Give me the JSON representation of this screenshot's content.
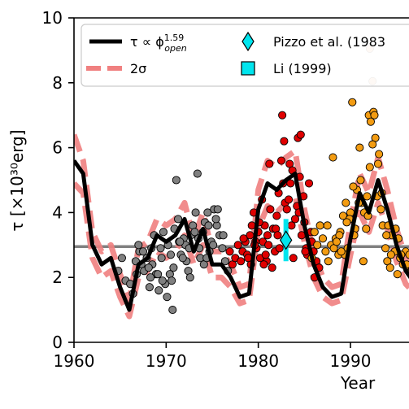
{
  "chart_data": {
    "type": "scatter",
    "xlabel": "Year",
    "ylabel": "τ [×10³⁰erg]",
    "xlim": [
      1960,
      1997
    ],
    "ylim": [
      0,
      10
    ],
    "x_ticks": [
      1960,
      1970,
      1980,
      1990
    ],
    "y_ticks": [
      0,
      2,
      4,
      6,
      8,
      10
    ],
    "reference_line": {
      "y": 2.95,
      "color": "#808080"
    },
    "legend": {
      "placement": "top",
      "entries": [
        {
          "label": "τ ∝ ϕ",
          "sup": "1.59",
          "sub": "open",
          "marker": "line",
          "color": "#000000"
        },
        {
          "label": "2σ",
          "marker": "dashed-line",
          "color": "#f08080"
        },
        {
          "label": "Pizzo et al. (1983",
          "marker": "diamond",
          "color": "#00e5ee"
        },
        {
          "label": "Li (1999)",
          "marker": "square",
          "color": "#00e5ee"
        }
      ]
    },
    "model_line": {
      "name": "τ ∝ ϕ^1.59_open",
      "color": "#000000",
      "x": [
        1960,
        1961,
        1962,
        1963,
        1964,
        1965,
        1966,
        1967,
        1968,
        1969,
        1970,
        1971,
        1972,
        1973,
        1974,
        1975,
        1976,
        1977,
        1978,
        1979,
        1980,
        1981,
        1982,
        1983,
        1984,
        1985,
        1986,
        1987,
        1988,
        1989,
        1990,
        1991,
        1992,
        1993,
        1994,
        1995,
        1996,
        1997
      ],
      "y": [
        5.6,
        5.2,
        3.0,
        2.4,
        2.6,
        1.7,
        1.0,
        2.4,
        2.6,
        3.3,
        3.1,
        3.3,
        3.8,
        2.8,
        3.5,
        2.4,
        2.4,
        2.0,
        1.4,
        1.5,
        4.1,
        4.9,
        4.7,
        5.0,
        5.2,
        3.6,
        2.4,
        1.7,
        1.4,
        1.5,
        3.2,
        4.6,
        4.0,
        5.0,
        4.1,
        3.0,
        2.2,
        1.8
      ]
    },
    "sigma_band": {
      "name": "2σ",
      "color": "#f08080",
      "upper": [
        6.4,
        5.6,
        3.4,
        2.8,
        3.0,
        2.1,
        1.3,
        2.9,
        3.1,
        3.8,
        3.6,
        3.8,
        4.3,
        3.2,
        4.0,
        2.8,
        2.8,
        2.4,
        1.7,
        1.8,
        4.7,
        5.6,
        5.4,
        5.7,
        5.9,
        4.1,
        2.8,
        2.0,
        1.7,
        1.8,
        3.7,
        5.2,
        4.6,
        5.7,
        4.7,
        3.5,
        2.6,
        2.1
      ],
      "lower": [
        4.9,
        4.6,
        2.6,
        2.0,
        2.2,
        1.4,
        0.8,
        2.0,
        2.2,
        2.8,
        2.6,
        2.8,
        3.3,
        2.4,
        3.0,
        2.0,
        2.0,
        1.7,
        1.2,
        1.3,
        3.5,
        4.2,
        4.0,
        4.3,
        4.5,
        3.1,
        2.0,
        1.4,
        1.2,
        1.3,
        2.7,
        4.0,
        3.4,
        4.3,
        3.5,
        2.5,
        1.8,
        1.5
      ]
    },
    "pizzo": {
      "x": 1983.0,
      "y": 3.15,
      "err_low": 2.5,
      "err_high": 3.8,
      "color": "#00e5ee"
    },
    "series": [
      {
        "name": "cycle 20",
        "color": "#808080",
        "x": [
          1964.8,
          1965.2,
          1965.6,
          1966.1,
          1966.4,
          1966.8,
          1967.1,
          1967.3,
          1967.6,
          1967.9,
          1968.2,
          1968.5,
          1968.7,
          1968.9,
          1969.2,
          1969.4,
          1969.7,
          1969.9,
          1970.2,
          1970.5,
          1970.7,
          1970.9,
          1971.1,
          1971.4,
          1971.6,
          1971.9,
          1972.2,
          1972.4,
          1972.7,
          1972.9,
          1973.2,
          1973.4,
          1973.7,
          1974.0,
          1974.2,
          1974.5,
          1974.7,
          1974.9,
          1975.2,
          1975.5,
          1975.8,
          1976.1,
          1976.4,
          1976.7,
          1966.7,
          1967.5,
          1968.1,
          1968.4,
          1969.1,
          1969.6,
          1970.1,
          1970.4,
          1970.8,
          1971.3,
          1971.8,
          1972.1,
          1972.6,
          1973.1,
          1973.6,
          1974.1,
          1974.6,
          1975.1,
          1975.6,
          1976.2,
          1967.0,
          1968.3,
          1969.5,
          1970.6,
          1971.5,
          1972.5,
          1973.5,
          1974.4,
          1975.4
        ],
        "y": [
          2.2,
          2.6,
          1.9,
          1.8,
          1.5,
          2.1,
          2.8,
          2.4,
          2.2,
          2.6,
          1.7,
          2.4,
          3.3,
          2.1,
          1.6,
          2.9,
          3.4,
          1.8,
          3.0,
          2.7,
          1.0,
          3.5,
          5.0,
          3.1,
          2.7,
          3.2,
          2.5,
          2.2,
          3.3,
          3.6,
          4.0,
          5.2,
          2.6,
          3.4,
          3.7,
          4.0,
          2.8,
          3.1,
          4.1,
          3.6,
          3.3,
          2.9,
          2.5,
          2.2,
          2.5,
          2.8,
          2.3,
          2.9,
          2.1,
          1.9,
          1.4,
          2.1,
          2.3,
          3.8,
          2.6,
          3.0,
          2.0,
          3.4,
          2.9,
          2.4,
          3.6,
          3.0,
          4.1,
          3.3,
          3.0,
          2.0,
          2.6,
          1.9,
          3.1,
          2.9,
          3.2,
          2.6,
          3.8
        ]
      },
      {
        "name": "cycle 21",
        "color": "#e00000",
        "x": [
          1976.9,
          1977.2,
          1977.5,
          1977.8,
          1978.1,
          1978.3,
          1978.6,
          1978.8,
          1979.1,
          1979.3,
          1979.5,
          1979.8,
          1980.0,
          1980.2,
          1980.5,
          1980.7,
          1980.9,
          1981.1,
          1981.3,
          1981.6,
          1981.8,
          1982.0,
          1982.2,
          1982.5,
          1982.7,
          1982.9,
          1983.1,
          1983.4,
          1983.6,
          1983.8,
          1984.0,
          1984.3,
          1984.5,
          1984.7,
          1985.0,
          1985.2,
          1985.5,
          1985.7,
          1986.0,
          1986.3,
          1986.6,
          1979.2,
          1979.7,
          1980.1,
          1980.4,
          1980.8,
          1981.0,
          1981.5,
          1981.9,
          1982.3,
          1982.6,
          1983.0,
          1983.3,
          1983.7,
          1984.2,
          1984.6,
          1984.9,
          1985.3,
          1985.8,
          1978.4,
          1978.9,
          1979.6,
          1980.6,
          1981.2,
          1982.1,
          1982.8,
          1983.5,
          1984.4,
          1985.1,
          1986.1
        ],
        "y": [
          2.8,
          2.4,
          2.6,
          3.0,
          2.5,
          2.8,
          3.1,
          2.7,
          3.3,
          3.6,
          4.0,
          2.9,
          3.4,
          2.6,
          3.1,
          3.6,
          2.5,
          3.0,
          4.1,
          3.5,
          2.8,
          3.9,
          4.6,
          5.6,
          4.9,
          4.3,
          4.1,
          5.5,
          3.6,
          2.6,
          3.8,
          6.3,
          5.1,
          3.3,
          3.7,
          2.9,
          4.9,
          3.4,
          2.8,
          2.5,
          2.3,
          2.4,
          3.1,
          3.7,
          4.4,
          2.7,
          3.3,
          2.3,
          3.5,
          2.9,
          7.0,
          3.2,
          4.4,
          5.3,
          4.2,
          6.4,
          4.5,
          2.7,
          3.1,
          3.2,
          2.6,
          3.0,
          2.4,
          5.5,
          3.3,
          6.2,
          4.9,
          4.0,
          2.8,
          2.0
        ]
      },
      {
        "name": "cycle 22",
        "color": "#f39c12",
        "x": [
          1985.8,
          1986.1,
          1986.4,
          1986.7,
          1987.0,
          1987.3,
          1987.6,
          1987.9,
          1988.1,
          1988.4,
          1988.7,
          1988.9,
          1989.2,
          1989.5,
          1989.7,
          1990.0,
          1990.2,
          1990.5,
          1990.7,
          1991.0,
          1991.2,
          1991.5,
          1991.7,
          1992.0,
          1992.2,
          1992.5,
          1992.7,
          1993.0,
          1993.3,
          1993.5,
          1993.8,
          1994.0,
          1994.3,
          1994.5,
          1994.8,
          1995.1,
          1995.4,
          1995.7,
          1996.0,
          1996.3,
          1996.6,
          1996.9,
          1987.5,
          1988.2,
          1988.8,
          1989.4,
          1989.9,
          1990.4,
          1990.9,
          1991.4,
          1991.9,
          1992.4,
          1992.9,
          1993.4,
          1993.9,
          1994.4,
          1994.9,
          1995.5,
          1996.1,
          1996.7,
          1988.5,
          1989.0,
          1989.6,
          1990.3,
          1991.1,
          1991.8,
          1992.1,
          1992.6,
          1993.1,
          1994.1,
          1995.2,
          1996.4
        ],
        "y": [
          2.6,
          3.4,
          3.0,
          3.6,
          3.2,
          2.8,
          2.5,
          3.0,
          5.7,
          3.2,
          2.7,
          3.4,
          3.9,
          4.3,
          2.9,
          4.0,
          7.4,
          3.5,
          4.7,
          6.0,
          4.3,
          4.0,
          3.5,
          7.0,
          6.8,
          7.1,
          6.3,
          5.5,
          4.1,
          3.6,
          2.9,
          2.5,
          2.3,
          3.3,
          2.8,
          2.1,
          2.6,
          2.4,
          2.8,
          2.3,
          2.2,
          2.5,
          3.6,
          2.9,
          3.3,
          2.7,
          3.8,
          3.3,
          4.3,
          2.5,
          3.9,
          6.1,
          4.5,
          4.6,
          3.3,
          2.7,
          3.5,
          2.7,
          2.4,
          2.2,
          3.1,
          2.8,
          3.7,
          4.8,
          5.0,
          4.5,
          5.4,
          7.0,
          5.8,
          3.6,
          3.2,
          2.7
        ]
      },
      {
        "name": "faded",
        "color": "#f5c6a5",
        "x": [
          1992.1,
          1992.4
        ],
        "y": [
          9.05,
          8.05
        ]
      }
    ]
  }
}
